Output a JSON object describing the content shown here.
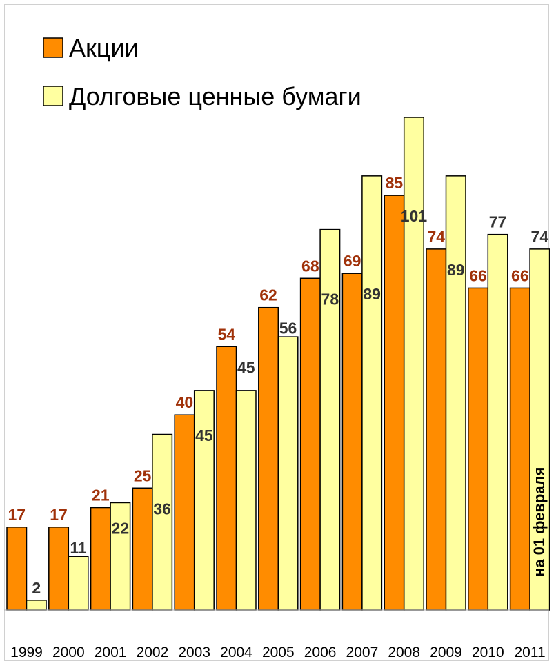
{
  "chart_data": {
    "type": "bar",
    "categories": [
      "1999",
      "2000",
      "2001",
      "2002",
      "2003",
      "2004",
      "2005",
      "2006",
      "2007",
      "2008",
      "2009",
      "2010",
      "2011"
    ],
    "series": [
      {
        "name": "Акции",
        "color": "#ff8c00",
        "label_color": "#a0320a",
        "values": [
          17,
          17,
          21,
          25,
          40,
          54,
          62,
          68,
          69,
          85,
          74,
          66,
          66
        ]
      },
      {
        "name": "Долговые ценные бумаги",
        "color": "#ffffa0",
        "label_color": "#333333",
        "values": [
          2,
          11,
          22,
          36,
          45,
          45,
          56,
          78,
          89,
          101,
          89,
          77,
          74
        ]
      }
    ],
    "annotation": "на 01 февраля",
    "ylim": [
      0,
      101
    ],
    "grid": false,
    "legend": "top-left"
  }
}
